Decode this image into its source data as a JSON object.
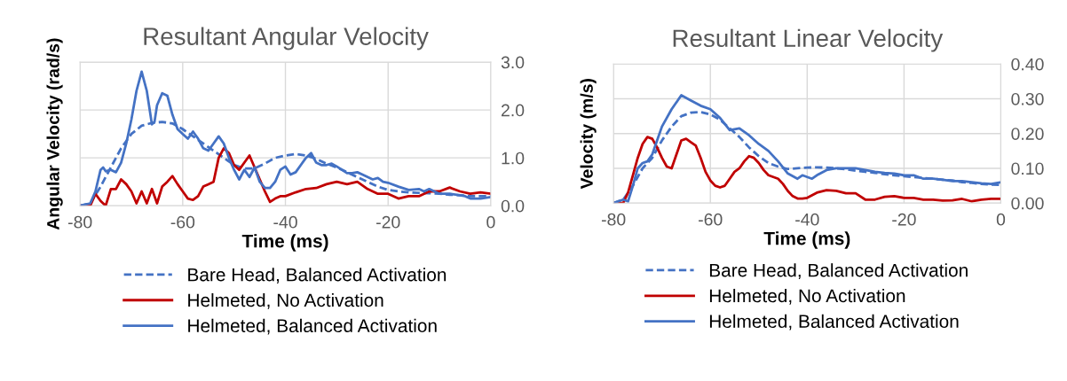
{
  "chart_data": [
    {
      "type": "line",
      "title": "Resultant Angular Velocity",
      "xlabel": "Time (ms)",
      "ylabel": "Angular Velocity (rad/s)",
      "xlim": [
        -80,
        0
      ],
      "xticks": [
        -80,
        -60,
        -40,
        -20,
        0
      ],
      "ylim": [
        0,
        3
      ],
      "yticks": [
        {
          "value": 0,
          "label": "0.0"
        },
        {
          "value": 1,
          "label": "1.0"
        },
        {
          "value": 2,
          "label": "2.0"
        },
        {
          "value": 3,
          "label": "3.0"
        }
      ],
      "grid": true,
      "legend": "bottom",
      "series": [
        {
          "name": "Bare Head, Balanced Activation",
          "color": "#4472c4",
          "line_style": "dashed",
          "x": [
            -80,
            -78,
            -76,
            -74,
            -72,
            -70,
            -68,
            -66,
            -64,
            -62,
            -60,
            -58,
            -56,
            -54,
            -52,
            -50,
            -48,
            -46,
            -44,
            -42,
            -40,
            -38,
            -36,
            -34,
            -32,
            -30,
            -28,
            -26,
            -24,
            -22,
            -20,
            -18,
            -16,
            -14,
            -12,
            -10,
            -8,
            -6,
            -4,
            -2,
            0
          ],
          "values": [
            0,
            0.05,
            0.4,
            0.8,
            1.2,
            1.5,
            1.67,
            1.73,
            1.75,
            1.72,
            1.6,
            1.45,
            1.3,
            1.15,
            1.0,
            0.85,
            0.78,
            0.78,
            0.88,
            1.0,
            1.05,
            1.08,
            1.05,
            0.98,
            0.88,
            0.8,
            0.7,
            0.6,
            0.5,
            0.4,
            0.33,
            0.3,
            0.28,
            0.27,
            0.26,
            0.25,
            0.23,
            0.22,
            0.2,
            0.2,
            0.2
          ]
        },
        {
          "name": "Helmeted, No Activation",
          "color": "#c00000",
          "line_style": "solid",
          "x": [
            -80,
            -78,
            -77,
            -76,
            -75,
            -74,
            -73,
            -72,
            -71,
            -70,
            -69,
            -68,
            -67,
            -66,
            -65,
            -64,
            -63,
            -62,
            -61,
            -60,
            -59,
            -58,
            -57,
            -56,
            -55,
            -54,
            -53,
            -52,
            -51,
            -50,
            -49,
            -48,
            -47,
            -46,
            -45,
            -44,
            -43,
            -42,
            -41,
            -40,
            -38,
            -36,
            -34,
            -32,
            -30,
            -28,
            -26,
            -24,
            -22,
            -20,
            -18,
            -16,
            -14,
            -12,
            -10,
            -8,
            -6,
            -4,
            -2,
            0
          ],
          "values": [
            0,
            0,
            0.25,
            0.1,
            0,
            0.35,
            0.35,
            0.55,
            0.45,
            0.3,
            0.05,
            0.3,
            0.05,
            0.35,
            0.05,
            0.4,
            0.5,
            0.62,
            0.45,
            0.3,
            0.15,
            0.12,
            0.2,
            0.4,
            0.45,
            0.5,
            1.0,
            1.2,
            1.1,
            0.85,
            0.75,
            0.9,
            1.05,
            0.8,
            0.55,
            0.3,
            0.08,
            0.15,
            0.2,
            0.2,
            0.28,
            0.35,
            0.37,
            0.45,
            0.5,
            0.45,
            0.5,
            0.35,
            0.25,
            0.25,
            0.15,
            0.2,
            0.2,
            0.3,
            0.3,
            0.38,
            0.3,
            0.25,
            0.28,
            0.25
          ]
        },
        {
          "name": "Helmeted, Balanced Activation",
          "color": "#4472c4",
          "line_style": "solid",
          "x": [
            -80,
            -78,
            -77,
            -76,
            -75.5,
            -75,
            -74,
            -73,
            -72,
            -71,
            -70,
            -69,
            -68,
            -67,
            -66,
            -65.5,
            -65,
            -64,
            -63,
            -62,
            -61,
            -60,
            -59,
            -58,
            -57,
            -56,
            -55,
            -54,
            -53,
            -52,
            -51,
            -50,
            -49,
            -48,
            -47,
            -46,
            -45,
            -44,
            -43,
            -42,
            -41,
            -40,
            -39,
            -38,
            -37,
            -36,
            -35,
            -34,
            -33,
            -32,
            -31,
            -30,
            -29,
            -28,
            -27,
            -26,
            -25,
            -24,
            -23,
            -22,
            -21,
            -20,
            -18,
            -16,
            -14,
            -13,
            -12,
            -10,
            -8,
            -6,
            -5,
            -4,
            -2,
            0
          ],
          "values": [
            0,
            0.05,
            0.3,
            0.75,
            0.8,
            0.72,
            0.75,
            0.7,
            0.9,
            1.3,
            1.8,
            2.4,
            2.8,
            2.4,
            1.7,
            1.75,
            2.1,
            2.35,
            2.3,
            1.9,
            1.6,
            1.5,
            1.4,
            1.55,
            1.4,
            1.2,
            1.15,
            1.3,
            1.45,
            1.3,
            1.0,
            0.75,
            0.55,
            0.75,
            0.6,
            0.8,
            0.5,
            0.37,
            0.37,
            0.5,
            0.75,
            0.82,
            0.65,
            0.7,
            0.85,
            1.0,
            1.1,
            0.9,
            0.85,
            0.85,
            0.88,
            0.82,
            0.75,
            0.68,
            0.68,
            0.7,
            0.65,
            0.6,
            0.55,
            0.58,
            0.5,
            0.48,
            0.4,
            0.33,
            0.35,
            0.3,
            0.35,
            0.25,
            0.25,
            0.22,
            0.2,
            0.15,
            0.15,
            0.18
          ]
        }
      ]
    },
    {
      "type": "line",
      "title": "Resultant Linear Velocity",
      "xlabel": "Time (ms)",
      "ylabel": "Velocity (m/s)",
      "xlim": [
        -80,
        0
      ],
      "xticks": [
        -80,
        -60,
        -40,
        -20,
        0
      ],
      "ylim": [
        0,
        0.4
      ],
      "yticks": [
        {
          "value": 0,
          "label": "0.00"
        },
        {
          "value": 0.1,
          "label": "0.10"
        },
        {
          "value": 0.2,
          "label": "0.20"
        },
        {
          "value": 0.3,
          "label": "0.30"
        },
        {
          "value": 0.4,
          "label": "0.40"
        }
      ],
      "grid": true,
      "legend": "bottom",
      "series": [
        {
          "name": "Bare Head, Balanced Activation",
          "color": "#4472c4",
          "line_style": "dashed",
          "x": [
            -80,
            -78,
            -76,
            -74,
            -72,
            -70,
            -68,
            -66,
            -64,
            -62,
            -60,
            -58,
            -56,
            -54,
            -52,
            -50,
            -48,
            -46,
            -44,
            -42,
            -40,
            -38,
            -36,
            -34,
            -32,
            -30,
            -28,
            -26,
            -24,
            -22,
            -20,
            -18,
            -16,
            -14,
            -12,
            -10,
            -8,
            -6,
            -4,
            -2,
            0
          ],
          "values": [
            0,
            0.01,
            0.05,
            0.1,
            0.13,
            0.18,
            0.22,
            0.25,
            0.26,
            0.262,
            0.255,
            0.24,
            0.215,
            0.19,
            0.16,
            0.135,
            0.115,
            0.105,
            0.098,
            0.1,
            0.102,
            0.103,
            0.102,
            0.1,
            0.097,
            0.093,
            0.09,
            0.087,
            0.083,
            0.08,
            0.077,
            0.075,
            0.072,
            0.07,
            0.067,
            0.065,
            0.06,
            0.058,
            0.055,
            0.053,
            0.052
          ]
        },
        {
          "name": "Helmeted, No Activation",
          "color": "#c00000",
          "line_style": "solid",
          "x": [
            -80,
            -78,
            -77,
            -76,
            -75,
            -74,
            -73,
            -72,
            -71,
            -70,
            -69,
            -68,
            -67,
            -66,
            -65,
            -64,
            -63,
            -62,
            -61,
            -60,
            -59,
            -58,
            -57,
            -56,
            -55,
            -54,
            -53,
            -52,
            -51,
            -50,
            -49,
            -48,
            -47,
            -46,
            -45,
            -44,
            -43,
            -42,
            -41,
            -40,
            -38,
            -36,
            -34,
            -32,
            -30,
            -28,
            -26,
            -24,
            -22,
            -20,
            -18,
            -16,
            -14,
            -12,
            -10,
            -8,
            -6,
            -4,
            -2,
            0
          ],
          "values": [
            0,
            0,
            0.03,
            0.08,
            0.13,
            0.17,
            0.19,
            0.185,
            0.16,
            0.13,
            0.105,
            0.1,
            0.14,
            0.18,
            0.185,
            0.175,
            0.165,
            0.13,
            0.09,
            0.065,
            0.05,
            0.045,
            0.05,
            0.07,
            0.09,
            0.1,
            0.12,
            0.135,
            0.13,
            0.115,
            0.095,
            0.08,
            0.075,
            0.07,
            0.055,
            0.035,
            0.02,
            0.013,
            0.013,
            0.015,
            0.03,
            0.037,
            0.035,
            0.028,
            0.028,
            0.01,
            0.01,
            0.018,
            0.02,
            0.015,
            0.015,
            0.01,
            0.01,
            0.007,
            0.008,
            0.012,
            0.005,
            0.01,
            0.012,
            0.012
          ]
        },
        {
          "name": "Helmeted, Balanced Activation",
          "color": "#4472c4",
          "line_style": "solid",
          "x": [
            -80,
            -78,
            -77,
            -76,
            -75,
            -74,
            -73,
            -72,
            -71,
            -70,
            -68,
            -66,
            -64,
            -62,
            -60,
            -58,
            -56,
            -54,
            -52,
            -50,
            -48,
            -46,
            -44,
            -42,
            -41,
            -40,
            -39,
            -38,
            -36,
            -34,
            -32,
            -30,
            -28,
            -26,
            -24,
            -22,
            -20,
            -18,
            -16,
            -14,
            -12,
            -10,
            -8,
            -6,
            -4,
            -2,
            0
          ],
          "values": [
            0,
            0.01,
            0.005,
            0.05,
            0.1,
            0.115,
            0.12,
            0.14,
            0.18,
            0.22,
            0.27,
            0.31,
            0.295,
            0.28,
            0.27,
            0.245,
            0.21,
            0.215,
            0.195,
            0.17,
            0.15,
            0.12,
            0.085,
            0.07,
            0.08,
            0.075,
            0.07,
            0.08,
            0.095,
            0.1,
            0.1,
            0.1,
            0.095,
            0.09,
            0.087,
            0.085,
            0.08,
            0.08,
            0.07,
            0.07,
            0.067,
            0.063,
            0.063,
            0.06,
            0.057,
            0.055,
            0.06
          ]
        }
      ]
    }
  ]
}
